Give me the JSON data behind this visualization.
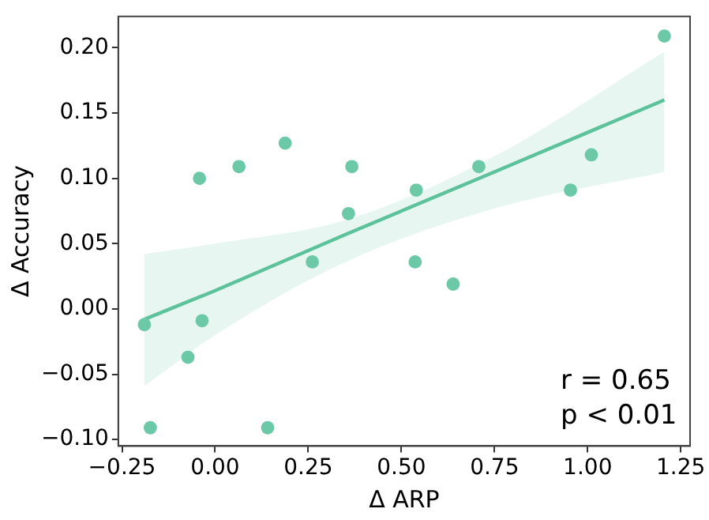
{
  "chart_data": {
    "type": "scatter",
    "xlabel": "Δ ARP",
    "ylabel": "Δ Accuracy",
    "xlim": [
      -0.26,
      1.275
    ],
    "ylim": [
      -0.105,
      0.224
    ],
    "xticks": [
      {
        "value": -0.25,
        "label": "−0.25"
      },
      {
        "value": 0,
        "label": "0.00"
      },
      {
        "value": 0.25,
        "label": "0.25"
      },
      {
        "value": 0.5,
        "label": "0.50"
      },
      {
        "value": 0.75,
        "label": "0.75"
      },
      {
        "value": 1,
        "label": "1.00"
      },
      {
        "value": 1.25,
        "label": "1.25"
      }
    ],
    "yticks": [
      {
        "value": -0.1,
        "label": "−0.10"
      },
      {
        "value": -0.05,
        "label": "−0.05"
      },
      {
        "value": 0,
        "label": "0.00"
      },
      {
        "value": 0.05,
        "label": "0.05"
      },
      {
        "value": 0.1,
        "label": "0.10"
      },
      {
        "value": 0.15,
        "label": "0.15"
      },
      {
        "value": 0.2,
        "label": "0.20"
      }
    ],
    "grid": false,
    "legend": false,
    "marker": "circle",
    "series": [
      {
        "color": "#6cc9a8",
        "x": [
          -0.19,
          -0.174,
          -0.073,
          -0.042,
          -0.035,
          0.064,
          0.141,
          0.188,
          0.261,
          0.358,
          0.367,
          0.54,
          0.537,
          0.639,
          0.708,
          0.954,
          1.01,
          1.206
        ],
        "values": [
          -0.012,
          -0.091,
          -0.037,
          0.1,
          -0.009,
          0.109,
          -0.091,
          0.127,
          0.036,
          0.073,
          0.109,
          0.091,
          0.036,
          0.019,
          0.109,
          0.091,
          0.118,
          0.209
        ]
      },
      {
        "type": "line",
        "color": "#5cc29c",
        "marker": "none",
        "x": [
          -0.19,
          0,
          0.35,
          0.75,
          1.206
        ],
        "values": [
          -0.008,
          0.014,
          0.057,
          0.105,
          0.16
        ],
        "lower": [
          -0.059,
          -0.02,
          0.036,
          0.077,
          0.105
        ],
        "upper": [
          0.042,
          0.05,
          0.068,
          0.117,
          0.197
        ]
      }
    ],
    "annotations": [
      "r = 0.65",
      "p < 0.01"
    ]
  }
}
